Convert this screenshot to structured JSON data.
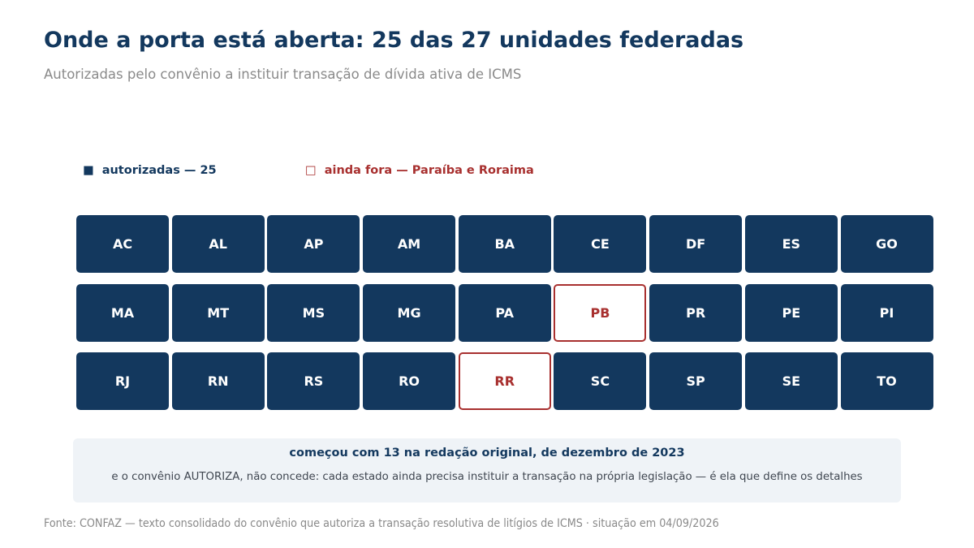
{
  "header": {
    "title": "Onde a porta está aberta: 25 das 27 unidades federadas",
    "subtitle": "Autorizadas pelo convênio a instituir transação de dívida ativa de ICMS"
  },
  "legend": {
    "authorized": {
      "symbol": "■",
      "label": "autorizadas — 25",
      "color": "#13385e"
    },
    "outside": {
      "symbol": "□",
      "label": "ainda fora — Paraíba e Roraima",
      "color": "#a8302f"
    }
  },
  "states": [
    {
      "code": "AC",
      "authorized": true
    },
    {
      "code": "AL",
      "authorized": true
    },
    {
      "code": "AP",
      "authorized": true
    },
    {
      "code": "AM",
      "authorized": true
    },
    {
      "code": "BA",
      "authorized": true
    },
    {
      "code": "CE",
      "authorized": true
    },
    {
      "code": "DF",
      "authorized": true
    },
    {
      "code": "ES",
      "authorized": true
    },
    {
      "code": "GO",
      "authorized": true
    },
    {
      "code": "MA",
      "authorized": true
    },
    {
      "code": "MT",
      "authorized": true
    },
    {
      "code": "MS",
      "authorized": true
    },
    {
      "code": "MG",
      "authorized": true
    },
    {
      "code": "PA",
      "authorized": true
    },
    {
      "code": "PB",
      "authorized": false
    },
    {
      "code": "PR",
      "authorized": true
    },
    {
      "code": "PE",
      "authorized": true
    },
    {
      "code": "PI",
      "authorized": true
    },
    {
      "code": "RJ",
      "authorized": true
    },
    {
      "code": "RN",
      "authorized": true
    },
    {
      "code": "RS",
      "authorized": true
    },
    {
      "code": "RO",
      "authorized": true
    },
    {
      "code": "RR",
      "authorized": false
    },
    {
      "code": "SC",
      "authorized": true
    },
    {
      "code": "SP",
      "authorized": true
    },
    {
      "code": "SE",
      "authorized": true
    },
    {
      "code": "TO",
      "authorized": true
    }
  ],
  "note": {
    "headline": "começou com 13 na redação original, de dezembro de 2023",
    "body": "e o convênio AUTORIZA, não concede: cada estado ainda precisa instituir a transação na própria legislação — é ela que define os detalhes"
  },
  "source": "Fonte: CONFAZ — texto consolidado do convênio que autoriza a transação resolutiva de litígios de ICMS · situação em 04/09/2026",
  "colors": {
    "authorized_fill": "#13385e",
    "outside_border": "#a8302f",
    "note_background": "#eff3f7"
  }
}
